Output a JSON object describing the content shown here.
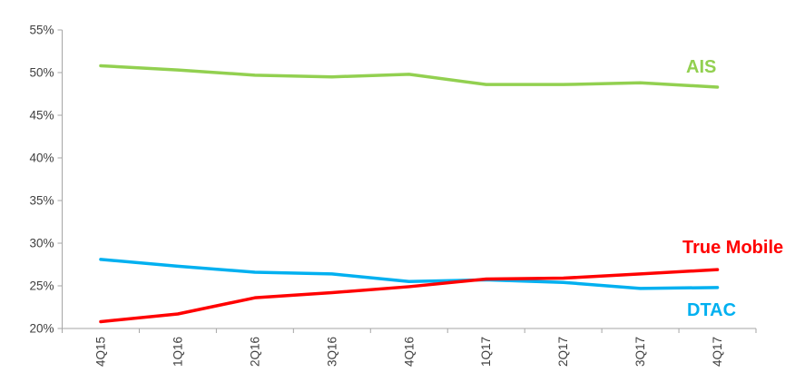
{
  "chart_data": {
    "type": "line",
    "title": "",
    "xlabel": "",
    "ylabel": "",
    "categories": [
      "4Q15",
      "1Q16",
      "2Q16",
      "3Q16",
      "4Q16",
      "1Q17",
      "2Q17",
      "3Q17",
      "4Q17"
    ],
    "series": [
      {
        "name": "AIS",
        "color": "#92D050",
        "values": [
          50.8,
          50.3,
          49.7,
          49.5,
          49.8,
          48.6,
          48.6,
          48.8,
          48.3
        ]
      },
      {
        "name": "DTAC",
        "color": "#00B0F0",
        "values": [
          28.1,
          27.3,
          26.6,
          26.4,
          25.5,
          25.7,
          25.4,
          24.7,
          24.8
        ]
      },
      {
        "name": "True Mobile",
        "color": "#FF0000",
        "values": [
          20.8,
          21.7,
          23.6,
          24.2,
          24.9,
          25.8,
          25.9,
          26.4,
          26.9
        ]
      }
    ],
    "ylim": [
      20,
      55
    ],
    "ytick_step": 5,
    "y_tick_labels": [
      "20%",
      "25%",
      "30%",
      "35%",
      "40%",
      "45%",
      "50%",
      "55%"
    ],
    "grid": false,
    "legend_position": "right-of-lines",
    "axis_color": "#A6A6A6",
    "tick_text_color": "#404040"
  }
}
